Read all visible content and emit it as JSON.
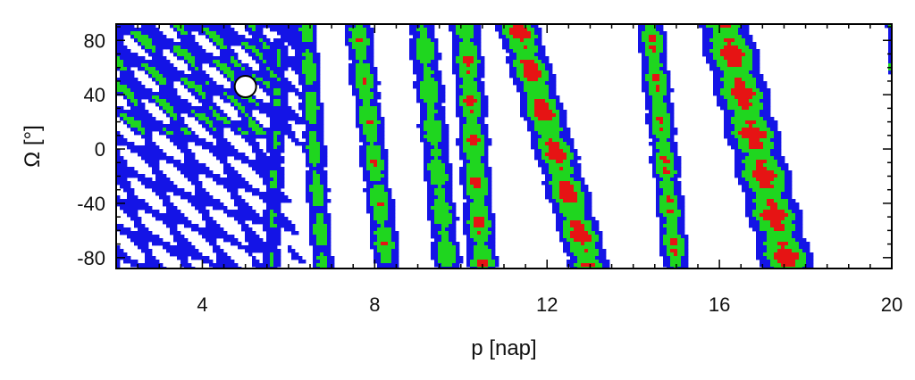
{
  "chart_data": {
    "type": "heatmap",
    "subtype": "filled-contour",
    "title": "",
    "xlabel": "p [nap]",
    "ylabel": "Ω [°]",
    "xlim": [
      2,
      20
    ],
    "ylim": [
      -88,
      92
    ],
    "x_ticks": [
      4,
      8,
      12,
      16,
      20
    ],
    "y_ticks": [
      80,
      40,
      0,
      -40,
      -80
    ],
    "x_minor_step": 0.5,
    "y_minor_step": 10,
    "contour_levels": [
      "low",
      "medium",
      "high"
    ],
    "level_colors": {
      "low": "#1414e6",
      "medium": "#1fd61f",
      "high": "#e61414",
      "outline": "#000000",
      "background": "#ffffff"
    },
    "ridges": [
      {
        "x_top": 5.8,
        "x_bottom": 5.6,
        "y_top": 78,
        "y_bottom": -85,
        "width": 0.55,
        "strength": 0.55
      },
      {
        "x_top": 6.4,
        "x_bottom": 6.8,
        "y_top": 88,
        "y_bottom": -85,
        "width": 0.6,
        "strength": 0.7
      },
      {
        "x_top": 7.6,
        "x_bottom": 8.3,
        "y_top": 88,
        "y_bottom": -85,
        "width": 0.7,
        "strength": 0.8
      },
      {
        "x_top": 9.1,
        "x_bottom": 9.7,
        "y_top": 90,
        "y_bottom": -85,
        "width": 0.75,
        "strength": 0.75
      },
      {
        "x_top": 10.1,
        "x_bottom": 10.5,
        "y_top": 90,
        "y_bottom": -85,
        "width": 0.75,
        "strength": 0.9
      },
      {
        "x_top": 11.3,
        "x_bottom": 13.0,
        "y_top": 90,
        "y_bottom": -85,
        "width": 1.0,
        "strength": 1.0
      },
      {
        "x_top": 14.4,
        "x_bottom": 15.0,
        "y_top": 90,
        "y_bottom": -85,
        "width": 0.7,
        "strength": 0.85
      },
      {
        "x_top": 16.1,
        "x_bottom": 17.6,
        "y_top": 90,
        "y_bottom": -85,
        "width": 1.25,
        "strength": 1.0
      },
      {
        "x_top": 19.95,
        "x_bottom": 19.95,
        "y_top": 90,
        "y_bottom": 60,
        "width": 0.2,
        "strength": 0.5
      }
    ],
    "marker": {
      "shape": "circle",
      "x": 5.0,
      "y": 46,
      "fill": "#ffffff",
      "stroke": "#000000"
    }
  }
}
